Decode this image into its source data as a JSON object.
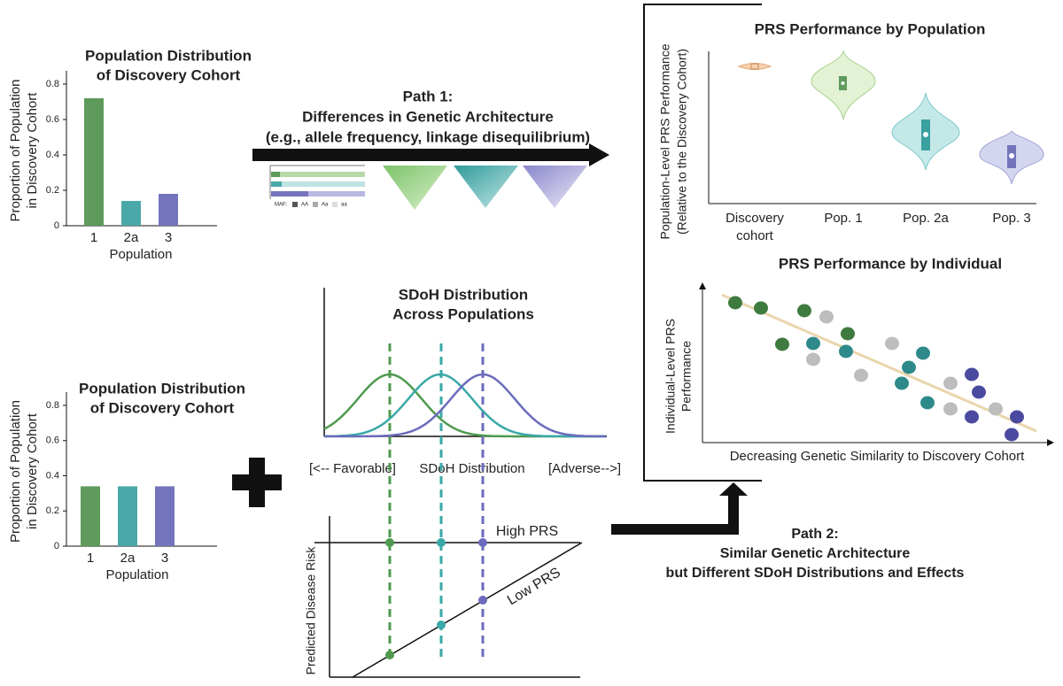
{
  "bar_top": {
    "title": [
      "Population Distribution",
      "of Discovery Cohort"
    ],
    "y_label": [
      "Proportion of Population",
      "in Discovery Cohort"
    ],
    "x_label": "Population",
    "categories": [
      "1",
      "2a",
      "3"
    ],
    "values": [
      0.72,
      0.14,
      0.18
    ],
    "colors": [
      "#5e9a5c",
      "#4aa8a8",
      "#7474bc"
    ],
    "ylim": [
      0,
      0.85
    ],
    "yticks": [
      0,
      0.2,
      0.4,
      0.6,
      0.8
    ]
  },
  "bar_bottom": {
    "title": [
      "Population Distribution",
      "of Discovery Cohort"
    ],
    "y_label": [
      "Proportion of Population",
      "in Discovery Cohort"
    ],
    "x_label": "Population",
    "categories": [
      "1",
      "2a",
      "3"
    ],
    "values": [
      0.34,
      0.34,
      0.34
    ],
    "colors": [
      "#5e9a5c",
      "#4aa8a8",
      "#7474bc"
    ],
    "ylim": [
      0,
      0.85
    ],
    "yticks": [
      0,
      0.2,
      0.4,
      0.6,
      0.8
    ]
  },
  "path1": {
    "title": [
      "Path 1:",
      "Differences in Genetic Architecture",
      "(e.g., allele frequency, linkage disequilibrium)"
    ],
    "maf_legend": [
      "MAF:",
      "AA",
      "Aa",
      "aa"
    ]
  },
  "sdoh": {
    "title": [
      "SDoH Distribution",
      "Across Populations"
    ],
    "axis_labels": [
      "[<-- Favorable]",
      "SDoH Distribution",
      "[Adverse-->]"
    ]
  },
  "risk": {
    "y_label": "Predicted Disease Risk",
    "lines": [
      "High PRS",
      "Low PRS"
    ]
  },
  "path2": {
    "title": [
      "Path 2:",
      "Similar Genetic Architecture",
      "but Different SDoH Distributions and Effects"
    ]
  },
  "violin": {
    "title": "PRS Performance by Population",
    "y_label": [
      "Population-Level PRS Performance",
      "(Relative to the Discovery Cohort)"
    ],
    "categories": [
      [
        "Discovery",
        "cohort"
      ],
      [
        "Pop. 1"
      ],
      [
        "Pop. 2a"
      ],
      [
        "Pop. 3"
      ]
    ]
  },
  "scatter": {
    "title": "PRS Performance by Individual",
    "y_label": [
      "Individual-Level PRS",
      "Performance"
    ],
    "x_label": "Decreasing Genetic Similarity to Discovery Cohort"
  }
}
